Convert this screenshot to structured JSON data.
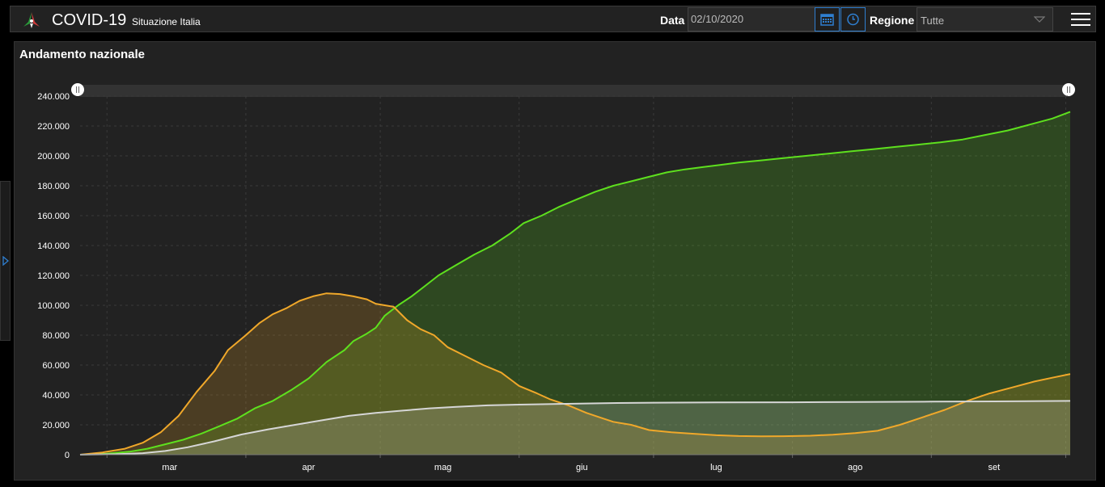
{
  "header": {
    "title": "COVID-19",
    "subtitle": "Situazione Italia",
    "date_label": "Data",
    "date_value": "02/10/2020",
    "region_label": "Regione",
    "region_value": "Tutte",
    "icons": {
      "logo": "italy-logo-icon",
      "calendar": "calendar-icon",
      "clock": "clock-icon",
      "menu": "hamburger-menu-icon",
      "dropdown": "chevron-down-icon",
      "sidebar_toggle": "chevron-right-icon"
    }
  },
  "panel": {
    "title": "Andamento nazionale"
  },
  "colors": {
    "green": "#5ee01e",
    "orange": "#f0a82a",
    "white": "#d6d6d6",
    "accent_blue": "#2f7fd0"
  },
  "chart_data": {
    "type": "area",
    "title": "Andamento nazionale",
    "xlabel": "",
    "ylabel": "",
    "ylim": [
      0,
      240000
    ],
    "yticks": [
      "0",
      "20.000",
      "40.000",
      "60.000",
      "80.000",
      "100.000",
      "120.000",
      "140.000",
      "160.000",
      "180.000",
      "200.000",
      "220.000",
      "240.000"
    ],
    "grid": true,
    "x_range": [
      "2020-02-24",
      "2020-10-02"
    ],
    "month_ticks": [
      {
        "label": "mar",
        "date": "2020-03-15"
      },
      {
        "label": "apr",
        "date": "2020-04-15"
      },
      {
        "label": "mag",
        "date": "2020-05-15"
      },
      {
        "label": "giu",
        "date": "2020-06-15"
      },
      {
        "label": "lug",
        "date": "2020-07-15"
      },
      {
        "label": "ago",
        "date": "2020-08-15"
      },
      {
        "label": "set",
        "date": "2020-09-15"
      }
    ],
    "series": [
      {
        "color": "#f0a82a",
        "points": [
          [
            "2020-02-24",
            0
          ],
          [
            "2020-02-29",
            1500
          ],
          [
            "2020-03-05",
            4000
          ],
          [
            "2020-03-09",
            8000
          ],
          [
            "2020-03-13",
            15000
          ],
          [
            "2020-03-17",
            26000
          ],
          [
            "2020-03-21",
            42000
          ],
          [
            "2020-03-25",
            56000
          ],
          [
            "2020-03-28",
            70000
          ],
          [
            "2020-04-01",
            80000
          ],
          [
            "2020-04-04",
            88000
          ],
          [
            "2020-04-07",
            94000
          ],
          [
            "2020-04-10",
            98000
          ],
          [
            "2020-04-13",
            103000
          ],
          [
            "2020-04-16",
            106000
          ],
          [
            "2020-04-19",
            108000
          ],
          [
            "2020-04-22",
            107500
          ],
          [
            "2020-04-25",
            106000
          ],
          [
            "2020-04-28",
            104000
          ],
          [
            "2020-04-30",
            101000
          ],
          [
            "2020-05-04",
            99000
          ],
          [
            "2020-05-07",
            90000
          ],
          [
            "2020-05-10",
            84000
          ],
          [
            "2020-05-13",
            80000
          ],
          [
            "2020-05-16",
            72000
          ],
          [
            "2020-05-20",
            66000
          ],
          [
            "2020-05-24",
            60000
          ],
          [
            "2020-05-28",
            55000
          ],
          [
            "2020-06-01",
            46000
          ],
          [
            "2020-06-05",
            41000
          ],
          [
            "2020-06-08",
            37000
          ],
          [
            "2020-06-12",
            33000
          ],
          [
            "2020-06-16",
            28000
          ],
          [
            "2020-06-19",
            25000
          ],
          [
            "2020-06-22",
            22000
          ],
          [
            "2020-06-26",
            20000
          ],
          [
            "2020-06-30",
            16500
          ],
          [
            "2020-07-05",
            15000
          ],
          [
            "2020-07-10",
            14000
          ],
          [
            "2020-07-15",
            13000
          ],
          [
            "2020-07-20",
            12500
          ],
          [
            "2020-07-25",
            12300
          ],
          [
            "2020-07-30",
            12400
          ],
          [
            "2020-08-05",
            12700
          ],
          [
            "2020-08-10",
            13400
          ],
          [
            "2020-08-15",
            14500
          ],
          [
            "2020-08-20",
            16000
          ],
          [
            "2020-08-25",
            20000
          ],
          [
            "2020-08-30",
            25000
          ],
          [
            "2020-09-04",
            30000
          ],
          [
            "2020-09-09",
            36000
          ],
          [
            "2020-09-14",
            41000
          ],
          [
            "2020-09-19",
            45000
          ],
          [
            "2020-09-24",
            49000
          ],
          [
            "2020-09-28",
            51500
          ],
          [
            "2020-10-02",
            54000
          ]
        ]
      },
      {
        "color": "#5ee01e",
        "points": [
          [
            "2020-02-24",
            0
          ],
          [
            "2020-03-01",
            700
          ],
          [
            "2020-03-06",
            2000
          ],
          [
            "2020-03-10",
            4000
          ],
          [
            "2020-03-14",
            7000
          ],
          [
            "2020-03-18",
            10000
          ],
          [
            "2020-03-22",
            14000
          ],
          [
            "2020-03-26",
            19000
          ],
          [
            "2020-03-30",
            24000
          ],
          [
            "2020-04-03",
            31000
          ],
          [
            "2020-04-07",
            36000
          ],
          [
            "2020-04-11",
            43000
          ],
          [
            "2020-04-15",
            51000
          ],
          [
            "2020-04-19",
            62000
          ],
          [
            "2020-04-23",
            70000
          ],
          [
            "2020-04-25",
            76000
          ],
          [
            "2020-04-28",
            81000
          ],
          [
            "2020-04-30",
            85000
          ],
          [
            "2020-05-02",
            93000
          ],
          [
            "2020-05-05",
            100000
          ],
          [
            "2020-05-08",
            106000
          ],
          [
            "2020-05-11",
            113000
          ],
          [
            "2020-05-14",
            120000
          ],
          [
            "2020-05-18",
            127000
          ],
          [
            "2020-05-22",
            134000
          ],
          [
            "2020-05-26",
            140000
          ],
          [
            "2020-05-30",
            148000
          ],
          [
            "2020-06-02",
            155000
          ],
          [
            "2020-06-06",
            160000
          ],
          [
            "2020-06-10",
            166000
          ],
          [
            "2020-06-14",
            171000
          ],
          [
            "2020-06-18",
            176000
          ],
          [
            "2020-06-22",
            180000
          ],
          [
            "2020-06-26",
            183000
          ],
          [
            "2020-06-30",
            186000
          ],
          [
            "2020-07-04",
            189000
          ],
          [
            "2020-07-08",
            191000
          ],
          [
            "2020-07-12",
            192500
          ],
          [
            "2020-07-16",
            194000
          ],
          [
            "2020-07-20",
            195500
          ],
          [
            "2020-07-25",
            197000
          ],
          [
            "2020-07-30",
            198500
          ],
          [
            "2020-08-04",
            200000
          ],
          [
            "2020-08-09",
            201500
          ],
          [
            "2020-08-14",
            203000
          ],
          [
            "2020-08-19",
            204500
          ],
          [
            "2020-08-24",
            206000
          ],
          [
            "2020-08-29",
            207500
          ],
          [
            "2020-09-03",
            209000
          ],
          [
            "2020-09-08",
            211000
          ],
          [
            "2020-09-13",
            214000
          ],
          [
            "2020-09-18",
            217000
          ],
          [
            "2020-09-23",
            221000
          ],
          [
            "2020-09-28",
            225000
          ],
          [
            "2020-10-02",
            229500
          ]
        ]
      },
      {
        "color": "#d6d6d6",
        "points": [
          [
            "2020-02-24",
            0
          ],
          [
            "2020-03-03",
            300
          ],
          [
            "2020-03-09",
            1000
          ],
          [
            "2020-03-14",
            2500
          ],
          [
            "2020-03-19",
            5000
          ],
          [
            "2020-03-25",
            9000
          ],
          [
            "2020-03-31",
            13500
          ],
          [
            "2020-04-06",
            17000
          ],
          [
            "2020-04-12",
            20000
          ],
          [
            "2020-04-18",
            23000
          ],
          [
            "2020-04-24",
            26000
          ],
          [
            "2020-04-30",
            28000
          ],
          [
            "2020-05-06",
            29500
          ],
          [
            "2020-05-12",
            31000
          ],
          [
            "2020-05-18",
            32000
          ],
          [
            "2020-05-25",
            33000
          ],
          [
            "2020-06-01",
            33500
          ],
          [
            "2020-06-10",
            34000
          ],
          [
            "2020-06-20",
            34500
          ],
          [
            "2020-07-01",
            34800
          ],
          [
            "2020-07-15",
            35000
          ],
          [
            "2020-08-01",
            35100
          ],
          [
            "2020-08-15",
            35300
          ],
          [
            "2020-09-01",
            35500
          ],
          [
            "2020-09-15",
            35700
          ],
          [
            "2020-10-02",
            36000
          ]
        ]
      }
    ]
  }
}
